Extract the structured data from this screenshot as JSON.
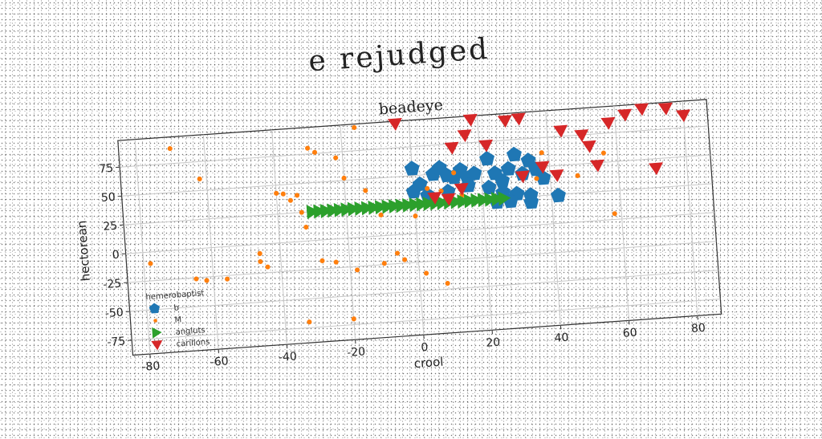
{
  "figure_title": "e rejudged",
  "chart_data": {
    "type": "scatter",
    "title": "beadeye",
    "xlabel": "crool",
    "ylabel": "hectorean",
    "xlim": [
      -85,
      87
    ],
    "ylim": [
      -88,
      98
    ],
    "xticks": [
      -80,
      -60,
      -40,
      -20,
      0,
      20,
      40,
      60,
      80
    ],
    "yticks": [
      -75,
      -50,
      -25,
      0,
      25,
      50,
      75
    ],
    "grid": true,
    "legend": {
      "title": "hemerobaptist",
      "placement": "lower-left"
    },
    "series": [
      {
        "name": "b",
        "marker": "pentagon",
        "color": "#1f77b4",
        "points": [
          [
            0,
            56
          ],
          [
            2,
            42
          ],
          [
            6,
            50
          ],
          [
            8,
            55
          ],
          [
            10,
            48
          ],
          [
            12,
            46
          ],
          [
            14,
            52
          ],
          [
            16,
            44
          ],
          [
            18,
            48
          ],
          [
            22,
            60
          ],
          [
            24,
            47
          ],
          [
            26,
            40
          ],
          [
            28,
            50
          ],
          [
            30,
            62
          ],
          [
            32,
            45
          ],
          [
            34,
            56
          ],
          [
            36,
            48
          ],
          [
            38,
            40
          ],
          [
            22,
            35
          ],
          [
            26,
            30
          ],
          [
            30,
            28
          ],
          [
            34,
            26
          ],
          [
            0,
            36
          ],
          [
            4,
            32
          ],
          [
            10,
            34
          ],
          [
            16,
            38
          ],
          [
            24,
            22
          ],
          [
            28,
            22
          ],
          [
            34,
            20
          ],
          [
            42,
            24
          ]
        ]
      },
      {
        "name": "M",
        "marker": "dot",
        "color": "#ff7f0e",
        "points": [
          [
            -70,
            88
          ],
          [
            -62,
            60
          ],
          [
            -78,
            -10
          ],
          [
            -65,
            -26
          ],
          [
            -62,
            -28
          ],
          [
            -56,
            -28
          ],
          [
            -46,
            -8
          ],
          [
            -46,
            -15
          ],
          [
            -44,
            -20
          ],
          [
            -40,
            43
          ],
          [
            -38,
            42
          ],
          [
            -36,
            36
          ],
          [
            -34,
            40
          ],
          [
            -33,
            25
          ],
          [
            -32,
            12
          ],
          [
            -30,
            80
          ],
          [
            -28,
            76
          ],
          [
            -28,
            -18
          ],
          [
            -24,
            -20
          ],
          [
            -20,
            52
          ],
          [
            -22,
            70
          ],
          [
            -18,
            -28
          ],
          [
            -16,
            95
          ],
          [
            -14,
            40
          ],
          [
            -10,
            -24
          ],
          [
            -6,
            -16
          ],
          [
            -4,
            -22
          ],
          [
            2,
            -35
          ],
          [
            8,
            -45
          ],
          [
            -20,
            -70
          ],
          [
            -33,
            -70
          ],
          [
            4,
            38
          ],
          [
            8,
            35
          ],
          [
            12,
            50
          ],
          [
            14,
            30
          ],
          [
            20,
            24
          ],
          [
            36,
            40
          ],
          [
            38,
            62
          ],
          [
            48,
            40
          ],
          [
            56,
            58
          ],
          [
            58,
            5
          ],
          [
            -10,
            18
          ],
          [
            0,
            15
          ]
        ]
      },
      {
        "name": "angluts",
        "marker": "triangle-right",
        "color": "#2ca02c",
        "points": [
          [
            -30,
            25
          ],
          [
            -28,
            25
          ],
          [
            -26,
            25
          ],
          [
            -24,
            25
          ],
          [
            -22,
            25
          ],
          [
            -20,
            25
          ],
          [
            -18,
            25
          ],
          [
            -16,
            25
          ],
          [
            -14,
            25
          ],
          [
            -12,
            25
          ],
          [
            -10,
            25
          ],
          [
            -8,
            25
          ],
          [
            -6,
            25
          ],
          [
            -4,
            25
          ],
          [
            -2,
            25
          ],
          [
            0,
            25
          ],
          [
            2,
            25
          ],
          [
            4,
            25
          ],
          [
            6,
            25
          ],
          [
            8,
            25
          ],
          [
            10,
            25
          ],
          [
            12,
            25
          ],
          [
            14,
            25
          ],
          [
            16,
            25
          ],
          [
            18,
            25
          ],
          [
            20,
            25
          ],
          [
            22,
            25
          ],
          [
            24,
            25
          ],
          [
            26,
            25
          ]
        ]
      },
      {
        "name": "carillons",
        "marker": "triangle-down",
        "color": "#d62728",
        "points": [
          [
            -4,
            96
          ],
          [
            6,
            30
          ],
          [
            12,
            72
          ],
          [
            16,
            82
          ],
          [
            18,
            95
          ],
          [
            22,
            72
          ],
          [
            28,
            92
          ],
          [
            32,
            93
          ],
          [
            32,
            43
          ],
          [
            38,
            50
          ],
          [
            42,
            42
          ],
          [
            44,
            80
          ],
          [
            50,
            75
          ],
          [
            52,
            65
          ],
          [
            54,
            48
          ],
          [
            58,
            84
          ],
          [
            63,
            90
          ],
          [
            68,
            94
          ],
          [
            71,
            42
          ],
          [
            75,
            93
          ],
          [
            80,
            86
          ],
          [
            10,
            28
          ],
          [
            14,
            36
          ]
        ]
      }
    ]
  }
}
